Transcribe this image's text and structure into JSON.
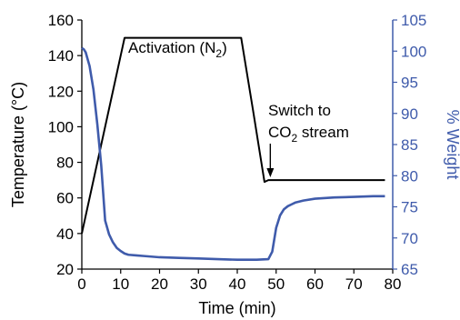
{
  "chart_data": {
    "type": "line",
    "xlabel": "Time (min)",
    "ylabel": "Temperature (°C)",
    "y2label": "% Weight",
    "xlim": [
      0,
      80
    ],
    "ylim": [
      20,
      160
    ],
    "y2lim": [
      65,
      105
    ],
    "x_ticks": [
      "0",
      "10",
      "20",
      "30",
      "40",
      "50",
      "60",
      "70",
      "80"
    ],
    "y_ticks": [
      "20",
      "40",
      "60",
      "80",
      "100",
      "120",
      "140",
      "160"
    ],
    "y2_ticks": [
      "65",
      "70",
      "75",
      "80",
      "85",
      "90",
      "95",
      "100",
      "105"
    ],
    "grid": false,
    "legend": "none",
    "colors": {
      "temperature": "#000000",
      "weight": "#3f5bab",
      "primary_axis": "#000000",
      "secondary_axis": "#3f5bab"
    },
    "series": [
      {
        "axis": "left",
        "x": [
          0,
          11,
          41,
          44,
          47,
          48,
          49,
          52,
          60,
          70,
          78
        ],
        "values": [
          40,
          150,
          150,
          110,
          69,
          70,
          70,
          70,
          70,
          70,
          70
        ]
      },
      {
        "axis": "right",
        "x": [
          0,
          0.5,
          1,
          2,
          3,
          4,
          5,
          6,
          7,
          8,
          9,
          10,
          11,
          12,
          14,
          16,
          20,
          25,
          30,
          35,
          40,
          45,
          48,
          49,
          50,
          51,
          52,
          53,
          54,
          55,
          57,
          60,
          65,
          70,
          75,
          78
        ],
        "values": [
          100.5,
          100.3,
          99.8,
          97.6,
          93.8,
          88.2,
          81.6,
          72.8,
          70.6,
          69.3,
          68.4,
          67.9,
          67.5,
          67.3,
          67.2,
          67.1,
          66.9,
          66.8,
          66.7,
          66.6,
          66.5,
          66.5,
          66.6,
          67.8,
          71.6,
          73.6,
          74.6,
          75.1,
          75.4,
          75.7,
          76.0,
          76.3,
          76.5,
          76.6,
          76.7,
          76.7
        ]
      }
    ],
    "annotations": [
      {
        "text": "Activation (N",
        "sub": "2",
        "tail": ")"
      },
      {
        "text": "Switch to",
        "line2_a": "CO",
        "sub": "2",
        "line2_b": " stream"
      }
    ]
  }
}
